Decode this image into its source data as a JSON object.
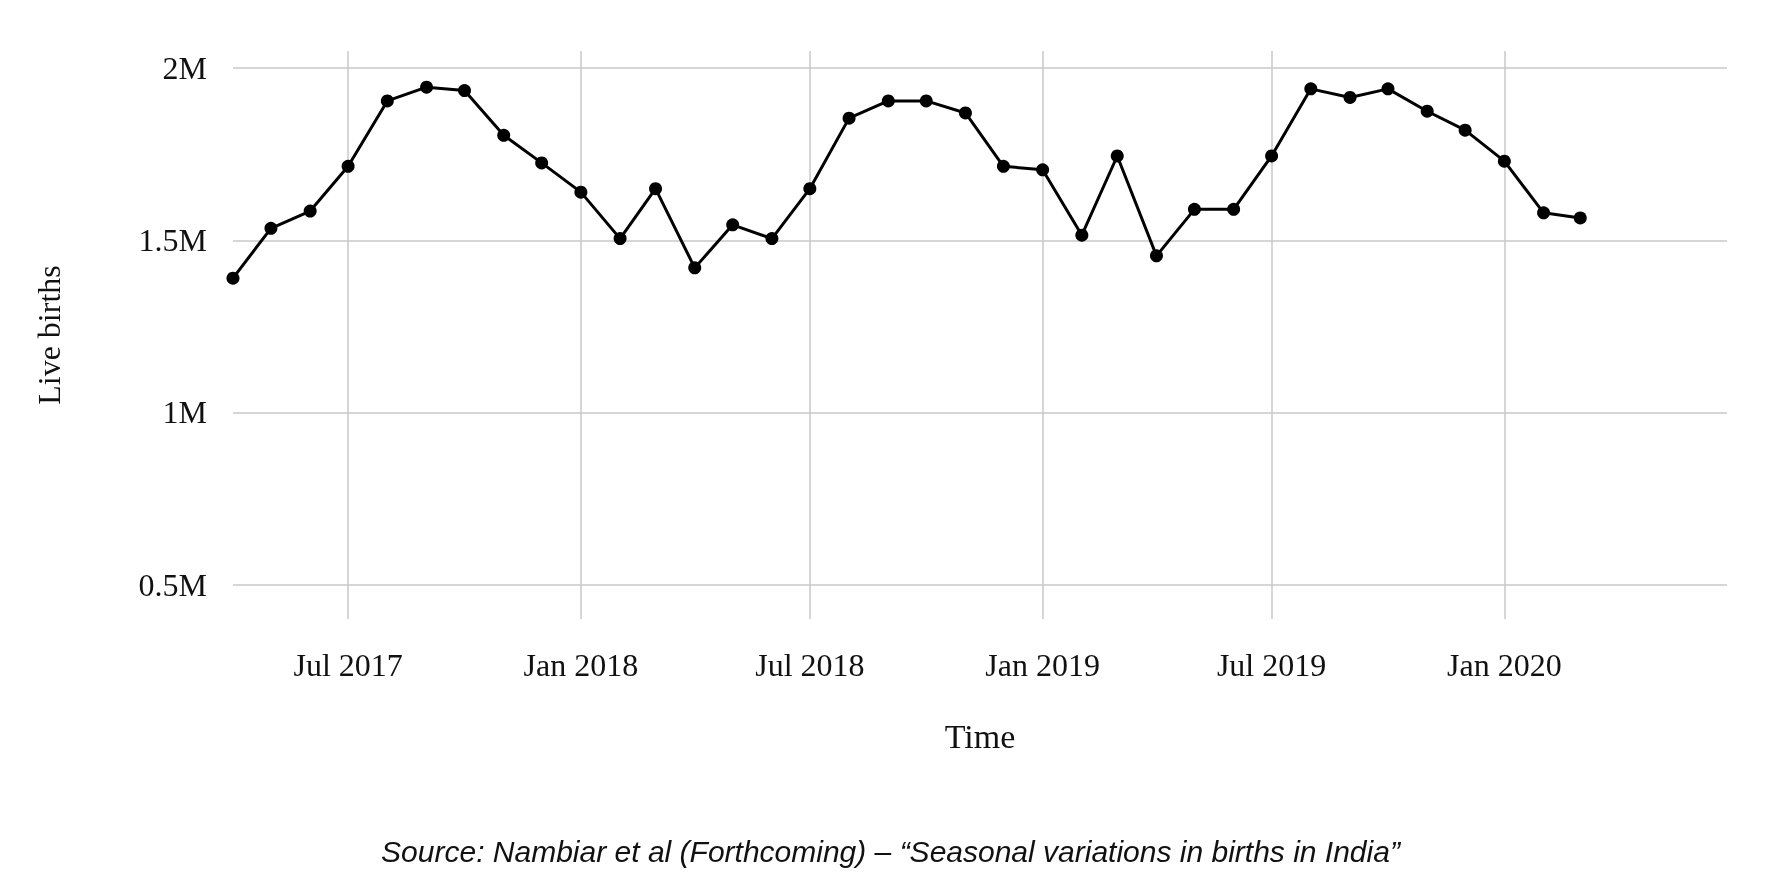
{
  "chart_data": {
    "type": "line",
    "xlabel": "Time",
    "ylabel": "Live births",
    "x": [
      "2017-04-01",
      "2017-05-01",
      "2017-06-01",
      "2017-07-01",
      "2017-08-01",
      "2017-09-01",
      "2017-10-01",
      "2017-11-01",
      "2017-12-01",
      "2018-01-01",
      "2018-02-01",
      "2018-03-01",
      "2018-04-01",
      "2018-05-01",
      "2018-06-01",
      "2018-07-01",
      "2018-08-01",
      "2018-09-01",
      "2018-10-01",
      "2018-11-01",
      "2018-12-01",
      "2019-01-01",
      "2019-02-01",
      "2019-03-01",
      "2019-04-01",
      "2019-05-01",
      "2019-06-01",
      "2019-07-01",
      "2019-08-01",
      "2019-09-01",
      "2019-10-01",
      "2019-11-01",
      "2019-12-01",
      "2020-01-01",
      "2020-02-01",
      "2020-03-01"
    ],
    "series": [
      {
        "color": "#000000",
        "values": [
          1390000,
          1535000,
          1585000,
          1715000,
          1905000,
          1945000,
          1935000,
          1805000,
          1725000,
          1640000,
          1505000,
          1650000,
          1420000,
          1545000,
          1505000,
          1650000,
          1855000,
          1905000,
          1905000,
          1870000,
          1715000,
          1705000,
          1515000,
          1745000,
          1455000,
          1590000,
          1590000,
          1745000,
          1940000,
          1915000,
          1940000,
          1875000,
          1820000,
          1730000,
          1580000,
          1565000
        ]
      }
    ],
    "xlim": [
      "2017-04-01",
      "2020-06-25"
    ],
    "xticks": [
      {
        "value": "2017-07-01",
        "label": "Jul 2017"
      },
      {
        "value": "2018-01-01",
        "label": "Jan 2018"
      },
      {
        "value": "2018-07-01",
        "label": "Jul 2018"
      },
      {
        "value": "2019-01-01",
        "label": "Jan 2019"
      },
      {
        "value": "2019-07-01",
        "label": "Jul 2019"
      },
      {
        "value": "2020-01-01",
        "label": "Jan 2020"
      }
    ],
    "ylim": [
      400000,
      2050000
    ],
    "yticks": [
      {
        "value": 500000,
        "label": "0.5M"
      },
      {
        "value": 1000000,
        "label": "1M"
      },
      {
        "value": 1500000,
        "label": "1.5M"
      },
      {
        "value": 2000000,
        "label": "2M"
      }
    ],
    "grid": true,
    "marker": "circle",
    "line_style": "solid",
    "annotations": [
      "Source: Nambiar et al (Forthcoming) – “Seasonal variations in births in India”"
    ]
  }
}
